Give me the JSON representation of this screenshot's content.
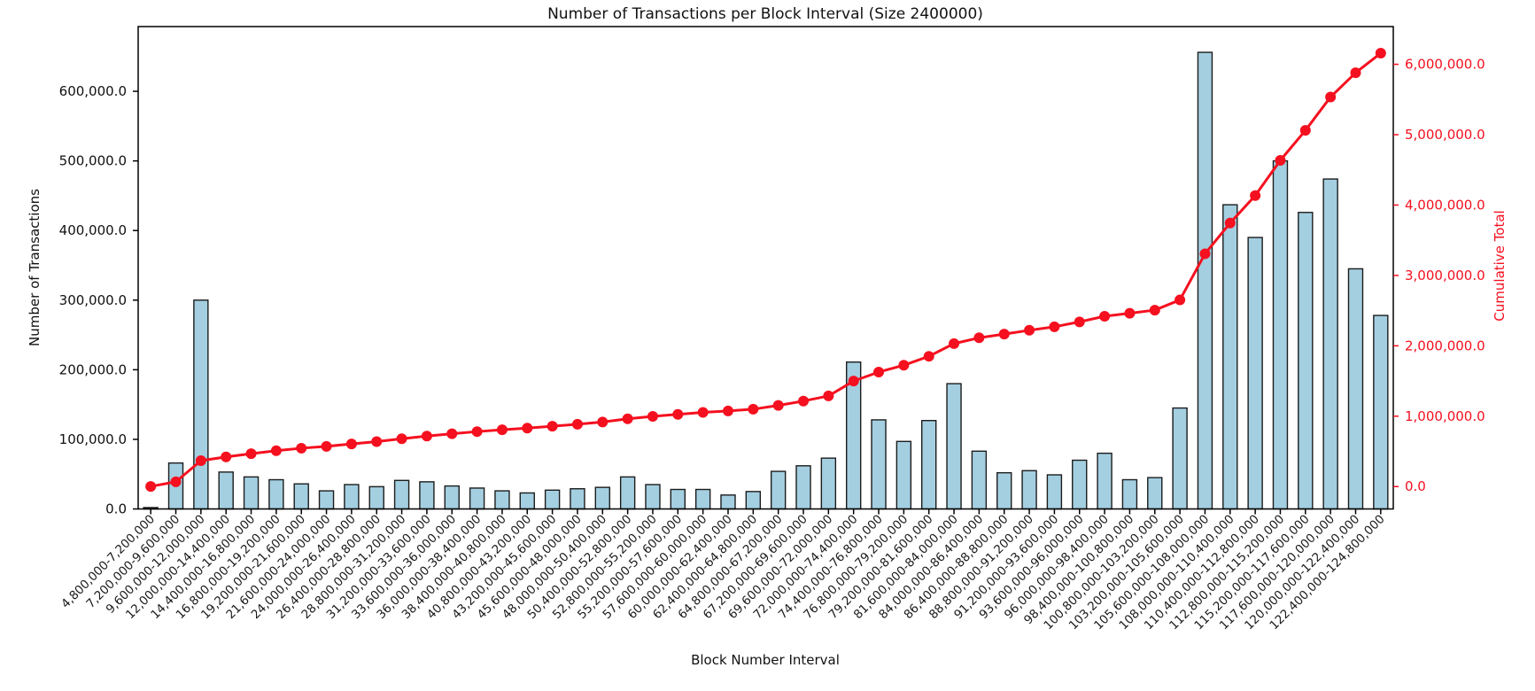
{
  "figure": {
    "background": "#ffffff"
  },
  "chart_data": {
    "type": "bar",
    "title": "Number of Transactions per Block Interval (Size 2400000)",
    "xlabel": "Block Number Interval",
    "ylabel_left": "Number of Transactions",
    "ylabel_right": "Cumulative Total",
    "grid": false,
    "legend_position": "none",
    "colors": {
      "bar_fill": "#a4cfe1",
      "bar_edge": "#1c1c1c",
      "line": "#f5101f",
      "axis_text": "#1a1a1a",
      "right_axis_text": "#f5101f",
      "spine": "#000000",
      "background": "#ffffff"
    },
    "categories": [
      "4,800,000-7,200,000",
      "7,200,000-9,600,000",
      "9,600,000-12,000,000",
      "12,000,000-14,400,000",
      "14,400,000-16,800,000",
      "16,800,000-19,200,000",
      "19,200,000-21,600,000",
      "21,600,000-24,000,000",
      "24,000,000-26,400,000",
      "26,400,000-28,800,000",
      "28,800,000-31,200,000",
      "31,200,000-33,600,000",
      "33,600,000-36,000,000",
      "36,000,000-38,400,000",
      "38,400,000-40,800,000",
      "40,800,000-43,200,000",
      "43,200,000-45,600,000",
      "45,600,000-48,000,000",
      "48,000,000-50,400,000",
      "50,400,000-52,800,000",
      "52,800,000-55,200,000",
      "55,200,000-57,600,000",
      "57,600,000-60,000,000",
      "60,000,000-62,400,000",
      "62,400,000-64,800,000",
      "64,800,000-67,200,000",
      "67,200,000-69,600,000",
      "69,600,000-72,000,000",
      "72,000,000-74,400,000",
      "74,400,000-76,800,000",
      "76,800,000-79,200,000",
      "79,200,000-81,600,000",
      "81,600,000-84,000,000",
      "84,000,000-86,400,000",
      "86,400,000-88,800,000",
      "88,800,000-91,200,000",
      "91,200,000-93,600,000",
      "93,600,000-96,000,000",
      "96,000,000-98,400,000",
      "98,400,000-100,800,000",
      "100,800,000-103,200,000",
      "103,200,000-105,600,000",
      "105,600,000-108,000,000",
      "108,000,000-110,400,000",
      "110,400,000-112,800,000",
      "112,800,000-115,200,000",
      "115,200,000-117,600,000",
      "117,600,000-120,000,000",
      "120,000,000-122,400,000",
      "122,400,000-124,800,000"
    ],
    "series": [
      {
        "name": "Number of Transactions",
        "type": "bar",
        "axis": "left",
        "values": [
          2000,
          66000,
          300000,
          53000,
          46000,
          42000,
          36000,
          26000,
          35000,
          32000,
          41000,
          39000,
          33000,
          30000,
          26000,
          23000,
          27000,
          29000,
          31000,
          46000,
          35000,
          28000,
          28000,
          20000,
          25000,
          54000,
          62000,
          73000,
          211000,
          128000,
          97000,
          127000,
          180000,
          83000,
          52000,
          55000,
          49000,
          70000,
          80000,
          42000,
          45000,
          145000,
          656000,
          437000,
          390000,
          500000,
          426000,
          474000,
          345000,
          278000
        ]
      },
      {
        "name": "Cumulative Total",
        "type": "line",
        "axis": "right",
        "values": [
          2000,
          68000,
          368000,
          421000,
          467000,
          509000,
          545000,
          571000,
          606000,
          638000,
          679000,
          718000,
          751000,
          781000,
          807000,
          830000,
          857000,
          886000,
          917000,
          963000,
          998000,
          1026000,
          1054000,
          1074000,
          1099000,
          1153000,
          1215000,
          1288000,
          1499000,
          1627000,
          1724000,
          1851000,
          2031000,
          2114000,
          2166000,
          2221000,
          2270000,
          2340000,
          2420000,
          2462000,
          2507000,
          2652000,
          3308000,
          3745000,
          4135000,
          4635000,
          5061000,
          5535000,
          5880000,
          6158000
        ]
      }
    ],
    "left_axis": {
      "range": [
        0,
        693000
      ],
      "tick_values": [
        0,
        100000,
        200000,
        300000,
        400000,
        500000,
        600000
      ],
      "tick_labels": [
        "0.0",
        "100,000.0",
        "200,000.0",
        "300,000.0",
        "400,000.0",
        "500,000.0",
        "600,000.0"
      ]
    },
    "right_axis": {
      "range": [
        -318000,
        6536000
      ],
      "tick_values": [
        0,
        1000000,
        2000000,
        3000000,
        4000000,
        5000000,
        6000000
      ],
      "tick_labels": [
        "0.0",
        "1,000,000.0",
        "2,000,000.0",
        "3,000,000.0",
        "4,000,000.0",
        "5,000,000.0",
        "6,000,000.0"
      ]
    }
  }
}
